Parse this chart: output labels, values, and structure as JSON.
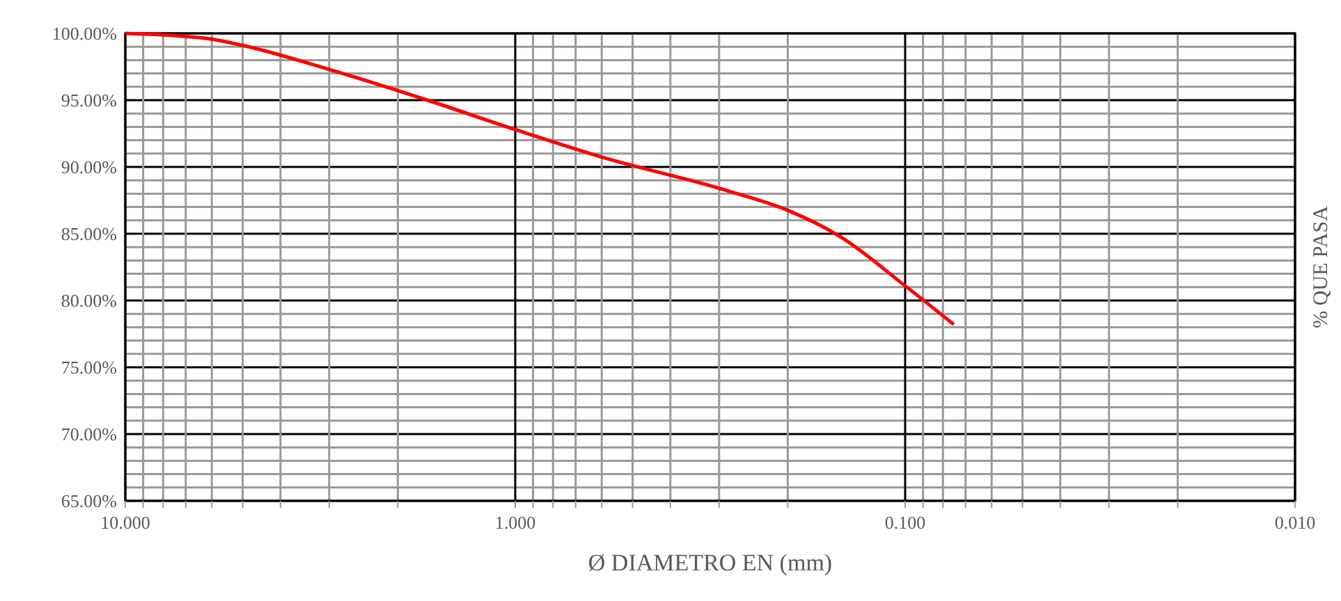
{
  "chart_data": {
    "type": "line",
    "xlabel": "Ø DIAMETRO EN (mm)",
    "ylabel": "% QUE PASA",
    "log": "x",
    "grid": true,
    "marker": "none",
    "line_style": "solid",
    "xlim": [
      10,
      0.01
    ],
    "ylim": [
      65,
      100
    ],
    "xticks": [
      {
        "value": 10,
        "label": "10.000"
      },
      {
        "value": 9,
        "label": null
      },
      {
        "value": 8,
        "label": null
      },
      {
        "value": 7,
        "label": null
      },
      {
        "value": 6,
        "label": null
      },
      {
        "value": 5,
        "label": null
      },
      {
        "value": 4,
        "label": null
      },
      {
        "value": 3,
        "label": null
      },
      {
        "value": 2,
        "label": null
      },
      {
        "value": 1,
        "label": "1.000"
      },
      {
        "value": 0.9,
        "label": null
      },
      {
        "value": 0.8,
        "label": null
      },
      {
        "value": 0.7,
        "label": null
      },
      {
        "value": 0.6,
        "label": null
      },
      {
        "value": 0.5,
        "label": null
      },
      {
        "value": 0.4,
        "label": null
      },
      {
        "value": 0.3,
        "label": null
      },
      {
        "value": 0.2,
        "label": null
      },
      {
        "value": 0.1,
        "label": "0.100"
      },
      {
        "value": 0.09,
        "label": null
      },
      {
        "value": 0.08,
        "label": null
      },
      {
        "value": 0.07,
        "label": null
      },
      {
        "value": 0.06,
        "label": null
      },
      {
        "value": 0.05,
        "label": null
      },
      {
        "value": 0.04,
        "label": null
      },
      {
        "value": 0.03,
        "label": null
      },
      {
        "value": 0.02,
        "label": null
      },
      {
        "value": 0.01,
        "label": "0.010"
      }
    ],
    "yticks": [
      {
        "value": 65,
        "label": "65.00%"
      },
      {
        "value": 66,
        "label": null
      },
      {
        "value": 67,
        "label": null
      },
      {
        "value": 68,
        "label": null
      },
      {
        "value": 69,
        "label": null
      },
      {
        "value": 70,
        "label": "70.00%"
      },
      {
        "value": 71,
        "label": null
      },
      {
        "value": 72,
        "label": null
      },
      {
        "value": 73,
        "label": null
      },
      {
        "value": 74,
        "label": null
      },
      {
        "value": 75,
        "label": "75.00%"
      },
      {
        "value": 76,
        "label": null
      },
      {
        "value": 77,
        "label": null
      },
      {
        "value": 78,
        "label": null
      },
      {
        "value": 79,
        "label": null
      },
      {
        "value": 80,
        "label": "80.00%"
      },
      {
        "value": 81,
        "label": null
      },
      {
        "value": 82,
        "label": null
      },
      {
        "value": 83,
        "label": null
      },
      {
        "value": 84,
        "label": null
      },
      {
        "value": 85,
        "label": "85.00%"
      },
      {
        "value": 86,
        "label": null
      },
      {
        "value": 87,
        "label": null
      },
      {
        "value": 88,
        "label": null
      },
      {
        "value": 89,
        "label": null
      },
      {
        "value": 90,
        "label": "90.00%"
      },
      {
        "value": 91,
        "label": null
      },
      {
        "value": 92,
        "label": null
      },
      {
        "value": 93,
        "label": null
      },
      {
        "value": 94,
        "label": null
      },
      {
        "value": 95,
        "label": "95.00%"
      },
      {
        "value": 96,
        "label": null
      },
      {
        "value": 97,
        "label": null
      },
      {
        "value": 98,
        "label": null
      },
      {
        "value": 99,
        "label": null
      },
      {
        "value": 100,
        "label": "100.00%"
      }
    ],
    "series": [
      {
        "color": "#ff0000",
        "x": [
          10,
          6.1,
          5.0,
          3.0,
          1.68,
          1.0,
          0.61,
          0.284,
          0.198,
          0.147,
          0.1,
          0.075
        ],
        "values": [
          100,
          99.6,
          99.1,
          97.3,
          95.0,
          92.8,
          90.8,
          88.2,
          86.7,
          84.8,
          81.1,
          78.2
        ]
      }
    ]
  }
}
